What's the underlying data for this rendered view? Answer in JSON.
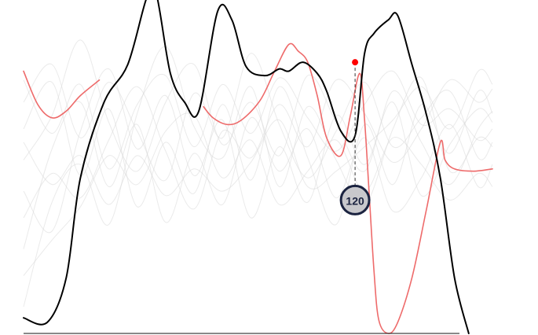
{
  "chart_data": {
    "type": "line",
    "title": "",
    "xlabel": "",
    "ylabel": "",
    "xlim": [
      0,
      100
    ],
    "ylim": [
      0,
      150
    ],
    "grid": false,
    "colors": {
      "main": "#000000",
      "highlight": "#ee6b6b",
      "background_series": "#d9d9d9",
      "marker": "#ff0000",
      "badge_fill": "#c8c8cc",
      "badge_border": "#1b2340",
      "badge_text": "#1b2340"
    },
    "series": [
      {
        "role": "main",
        "points": [
          [
            0,
            7
          ],
          [
            5,
            5
          ],
          [
            9,
            25
          ],
          [
            12,
            70
          ],
          [
            17,
            104
          ],
          [
            22,
            121
          ],
          [
            26,
            151
          ],
          [
            28,
            153
          ],
          [
            31,
            117
          ],
          [
            34,
            104
          ],
          [
            37,
            100
          ],
          [
            41,
            145
          ],
          [
            44,
            141
          ],
          [
            47,
            120
          ],
          [
            51,
            116
          ],
          [
            54,
            119
          ],
          [
            56,
            118
          ],
          [
            59,
            122
          ],
          [
            62,
            117
          ],
          [
            64,
            109
          ],
          [
            67,
            91
          ],
          [
            70,
            89
          ],
          [
            72,
            126
          ],
          [
            74,
            135
          ],
          [
            77,
            141
          ],
          [
            79,
            143
          ],
          [
            82,
            121
          ],
          [
            85,
            99
          ],
          [
            88,
            70
          ],
          [
            91,
            25
          ],
          [
            94,
            0
          ]
        ]
      },
      {
        "role": "highlight",
        "segments": [
          [
            [
              0,
              118
            ],
            [
              3,
              103
            ],
            [
              6,
              97
            ],
            [
              9,
              100
            ],
            [
              12,
              107
            ],
            [
              16,
              114
            ]
          ],
          [
            [
              38,
              102
            ],
            [
              40,
              97
            ],
            [
              43,
              94
            ],
            [
              46,
              96
            ],
            [
              50,
              105
            ],
            [
              53,
              118
            ],
            [
              56,
              130
            ],
            [
              58,
              127
            ],
            [
              60,
              122
            ],
            [
              62,
              107
            ],
            [
              64,
              88
            ],
            [
              67,
              80
            ],
            [
              69,
              98
            ],
            [
              71,
              117
            ],
            [
              72,
              96
            ],
            [
              73,
              62
            ],
            [
              74,
              28
            ],
            [
              75,
              6
            ],
            [
              77,
              0
            ],
            [
              79,
              5
            ],
            [
              82,
              25
            ],
            [
              85,
              55
            ],
            [
              88,
              86
            ],
            [
              89,
              78
            ],
            [
              91,
              74
            ],
            [
              95,
              73
            ],
            [
              99,
              74
            ]
          ]
        ]
      },
      {
        "role": "background",
        "points": [
          [
            0,
            92
          ],
          [
            6,
            113
          ],
          [
            12,
            71
          ],
          [
            18,
            101
          ],
          [
            24,
            57
          ],
          [
            30,
            86
          ],
          [
            36,
            63
          ],
          [
            42,
            103
          ],
          [
            48,
            69
          ],
          [
            54,
            111
          ],
          [
            60,
            79
          ],
          [
            66,
            49
          ],
          [
            72,
            94
          ],
          [
            78,
            67
          ],
          [
            84,
            103
          ],
          [
            90,
            81
          ],
          [
            96,
            109
          ],
          [
            99,
            99
          ]
        ]
      },
      {
        "role": "background",
        "points": [
          [
            0,
            38
          ],
          [
            6,
            83
          ],
          [
            12,
            104
          ],
          [
            18,
            66
          ],
          [
            24,
            94
          ],
          [
            30,
            50
          ],
          [
            36,
            81
          ],
          [
            42,
            58
          ],
          [
            48,
            97
          ],
          [
            54,
            73
          ],
          [
            60,
            92
          ],
          [
            66,
            61
          ],
          [
            72,
            88
          ],
          [
            78,
            55
          ],
          [
            84,
            70
          ],
          [
            90,
            94
          ],
          [
            96,
            66
          ],
          [
            99,
            76
          ]
        ]
      },
      {
        "role": "background",
        "points": [
          [
            0,
            64
          ],
          [
            6,
            46
          ],
          [
            12,
            91
          ],
          [
            18,
            119
          ],
          [
            24,
            83
          ],
          [
            30,
            107
          ],
          [
            36,
            71
          ],
          [
            42,
            96
          ],
          [
            48,
            52
          ],
          [
            54,
            84
          ],
          [
            60,
            59
          ],
          [
            66,
            98
          ],
          [
            72,
            76
          ],
          [
            78,
            104
          ],
          [
            84,
            62
          ],
          [
            90,
            85
          ],
          [
            96,
            101
          ],
          [
            99,
            95
          ]
        ]
      },
      {
        "role": "background",
        "points": [
          [
            0,
            12
          ],
          [
            6,
            59
          ],
          [
            12,
            76
          ],
          [
            18,
            49
          ],
          [
            24,
            99
          ],
          [
            30,
            129
          ],
          [
            36,
            93
          ],
          [
            42,
            79
          ],
          [
            48,
            111
          ],
          [
            54,
            66
          ],
          [
            60,
            102
          ],
          [
            66,
            78
          ],
          [
            72,
            58
          ],
          [
            78,
            92
          ],
          [
            84,
            115
          ],
          [
            90,
            73
          ],
          [
            96,
            88
          ],
          [
            99,
            84
          ]
        ]
      },
      {
        "role": "background",
        "points": [
          [
            0,
            104
          ],
          [
            6,
            121
          ],
          [
            12,
            88
          ],
          [
            18,
            113
          ],
          [
            24,
            91
          ],
          [
            30,
            69
          ],
          [
            36,
            108
          ],
          [
            42,
            88
          ],
          [
            48,
            126
          ],
          [
            54,
            94
          ],
          [
            60,
            70
          ],
          [
            66,
            91
          ],
          [
            72,
            113
          ],
          [
            78,
            84
          ],
          [
            84,
            97
          ],
          [
            90,
            109
          ],
          [
            96,
            79
          ],
          [
            99,
            86
          ]
        ]
      },
      {
        "role": "background",
        "points": [
          [
            0,
            78
          ],
          [
            6,
            98
          ],
          [
            12,
            132
          ],
          [
            18,
            95
          ],
          [
            24,
            73
          ],
          [
            30,
            104
          ],
          [
            36,
            121
          ],
          [
            42,
            85
          ],
          [
            48,
            104
          ],
          [
            54,
            80
          ],
          [
            60,
            116
          ],
          [
            66,
            95
          ],
          [
            72,
            73
          ],
          [
            78,
            109
          ],
          [
            84,
            86
          ],
          [
            90,
            67
          ],
          [
            96,
            92
          ],
          [
            99,
            100
          ]
        ]
      },
      {
        "role": "background",
        "points": [
          [
            0,
            52
          ],
          [
            6,
            72
          ],
          [
            12,
            61
          ],
          [
            18,
            87
          ],
          [
            24,
            111
          ],
          [
            30,
            82
          ],
          [
            36,
            56
          ],
          [
            42,
            91
          ],
          [
            48,
            79
          ],
          [
            54,
            103
          ],
          [
            60,
            84
          ],
          [
            66,
            114
          ],
          [
            72,
            99
          ],
          [
            78,
            77
          ],
          [
            84,
            92
          ],
          [
            90,
            114
          ],
          [
            96,
            104
          ],
          [
            99,
            110
          ]
        ]
      },
      {
        "role": "background",
        "points": [
          [
            0,
            26
          ],
          [
            6,
            42
          ],
          [
            12,
            57
          ],
          [
            18,
            80
          ],
          [
            24,
            67
          ],
          [
            30,
            91
          ],
          [
            36,
            98
          ],
          [
            42,
            70
          ],
          [
            48,
            87
          ],
          [
            54,
            58
          ],
          [
            60,
            73
          ],
          [
            66,
            87
          ],
          [
            72,
            64
          ],
          [
            78,
            88
          ],
          [
            84,
            76
          ],
          [
            90,
            60
          ],
          [
            96,
            72
          ],
          [
            99,
            66
          ]
        ]
      },
      {
        "role": "background",
        "points": [
          [
            0,
            114
          ],
          [
            6,
            90
          ],
          [
            12,
            112
          ],
          [
            18,
            74
          ],
          [
            24,
            103
          ],
          [
            30,
            116
          ],
          [
            36,
            84
          ],
          [
            42,
            112
          ],
          [
            48,
            90
          ],
          [
            54,
            115
          ],
          [
            60,
            97
          ],
          [
            66,
            82
          ],
          [
            72,
            103
          ],
          [
            78,
            118
          ],
          [
            84,
            94
          ],
          [
            90,
            101
          ],
          [
            96,
            87
          ],
          [
            99,
            92
          ]
        ]
      },
      {
        "role": "background",
        "points": [
          [
            0,
            86
          ],
          [
            6,
            67
          ],
          [
            12,
            80
          ],
          [
            18,
            58
          ],
          [
            24,
            80
          ],
          [
            30,
            62
          ],
          [
            36,
            74
          ],
          [
            42,
            64
          ],
          [
            48,
            77
          ],
          [
            54,
            96
          ],
          [
            60,
            66
          ],
          [
            66,
            73
          ],
          [
            72,
            84
          ],
          [
            78,
            96
          ],
          [
            84,
            111
          ],
          [
            90,
            92
          ],
          [
            96,
            118
          ],
          [
            99,
            112
          ]
        ]
      }
    ],
    "marker": {
      "x": 70,
      "y": 122
    },
    "callout": {
      "label": "120",
      "y": 60
    }
  }
}
